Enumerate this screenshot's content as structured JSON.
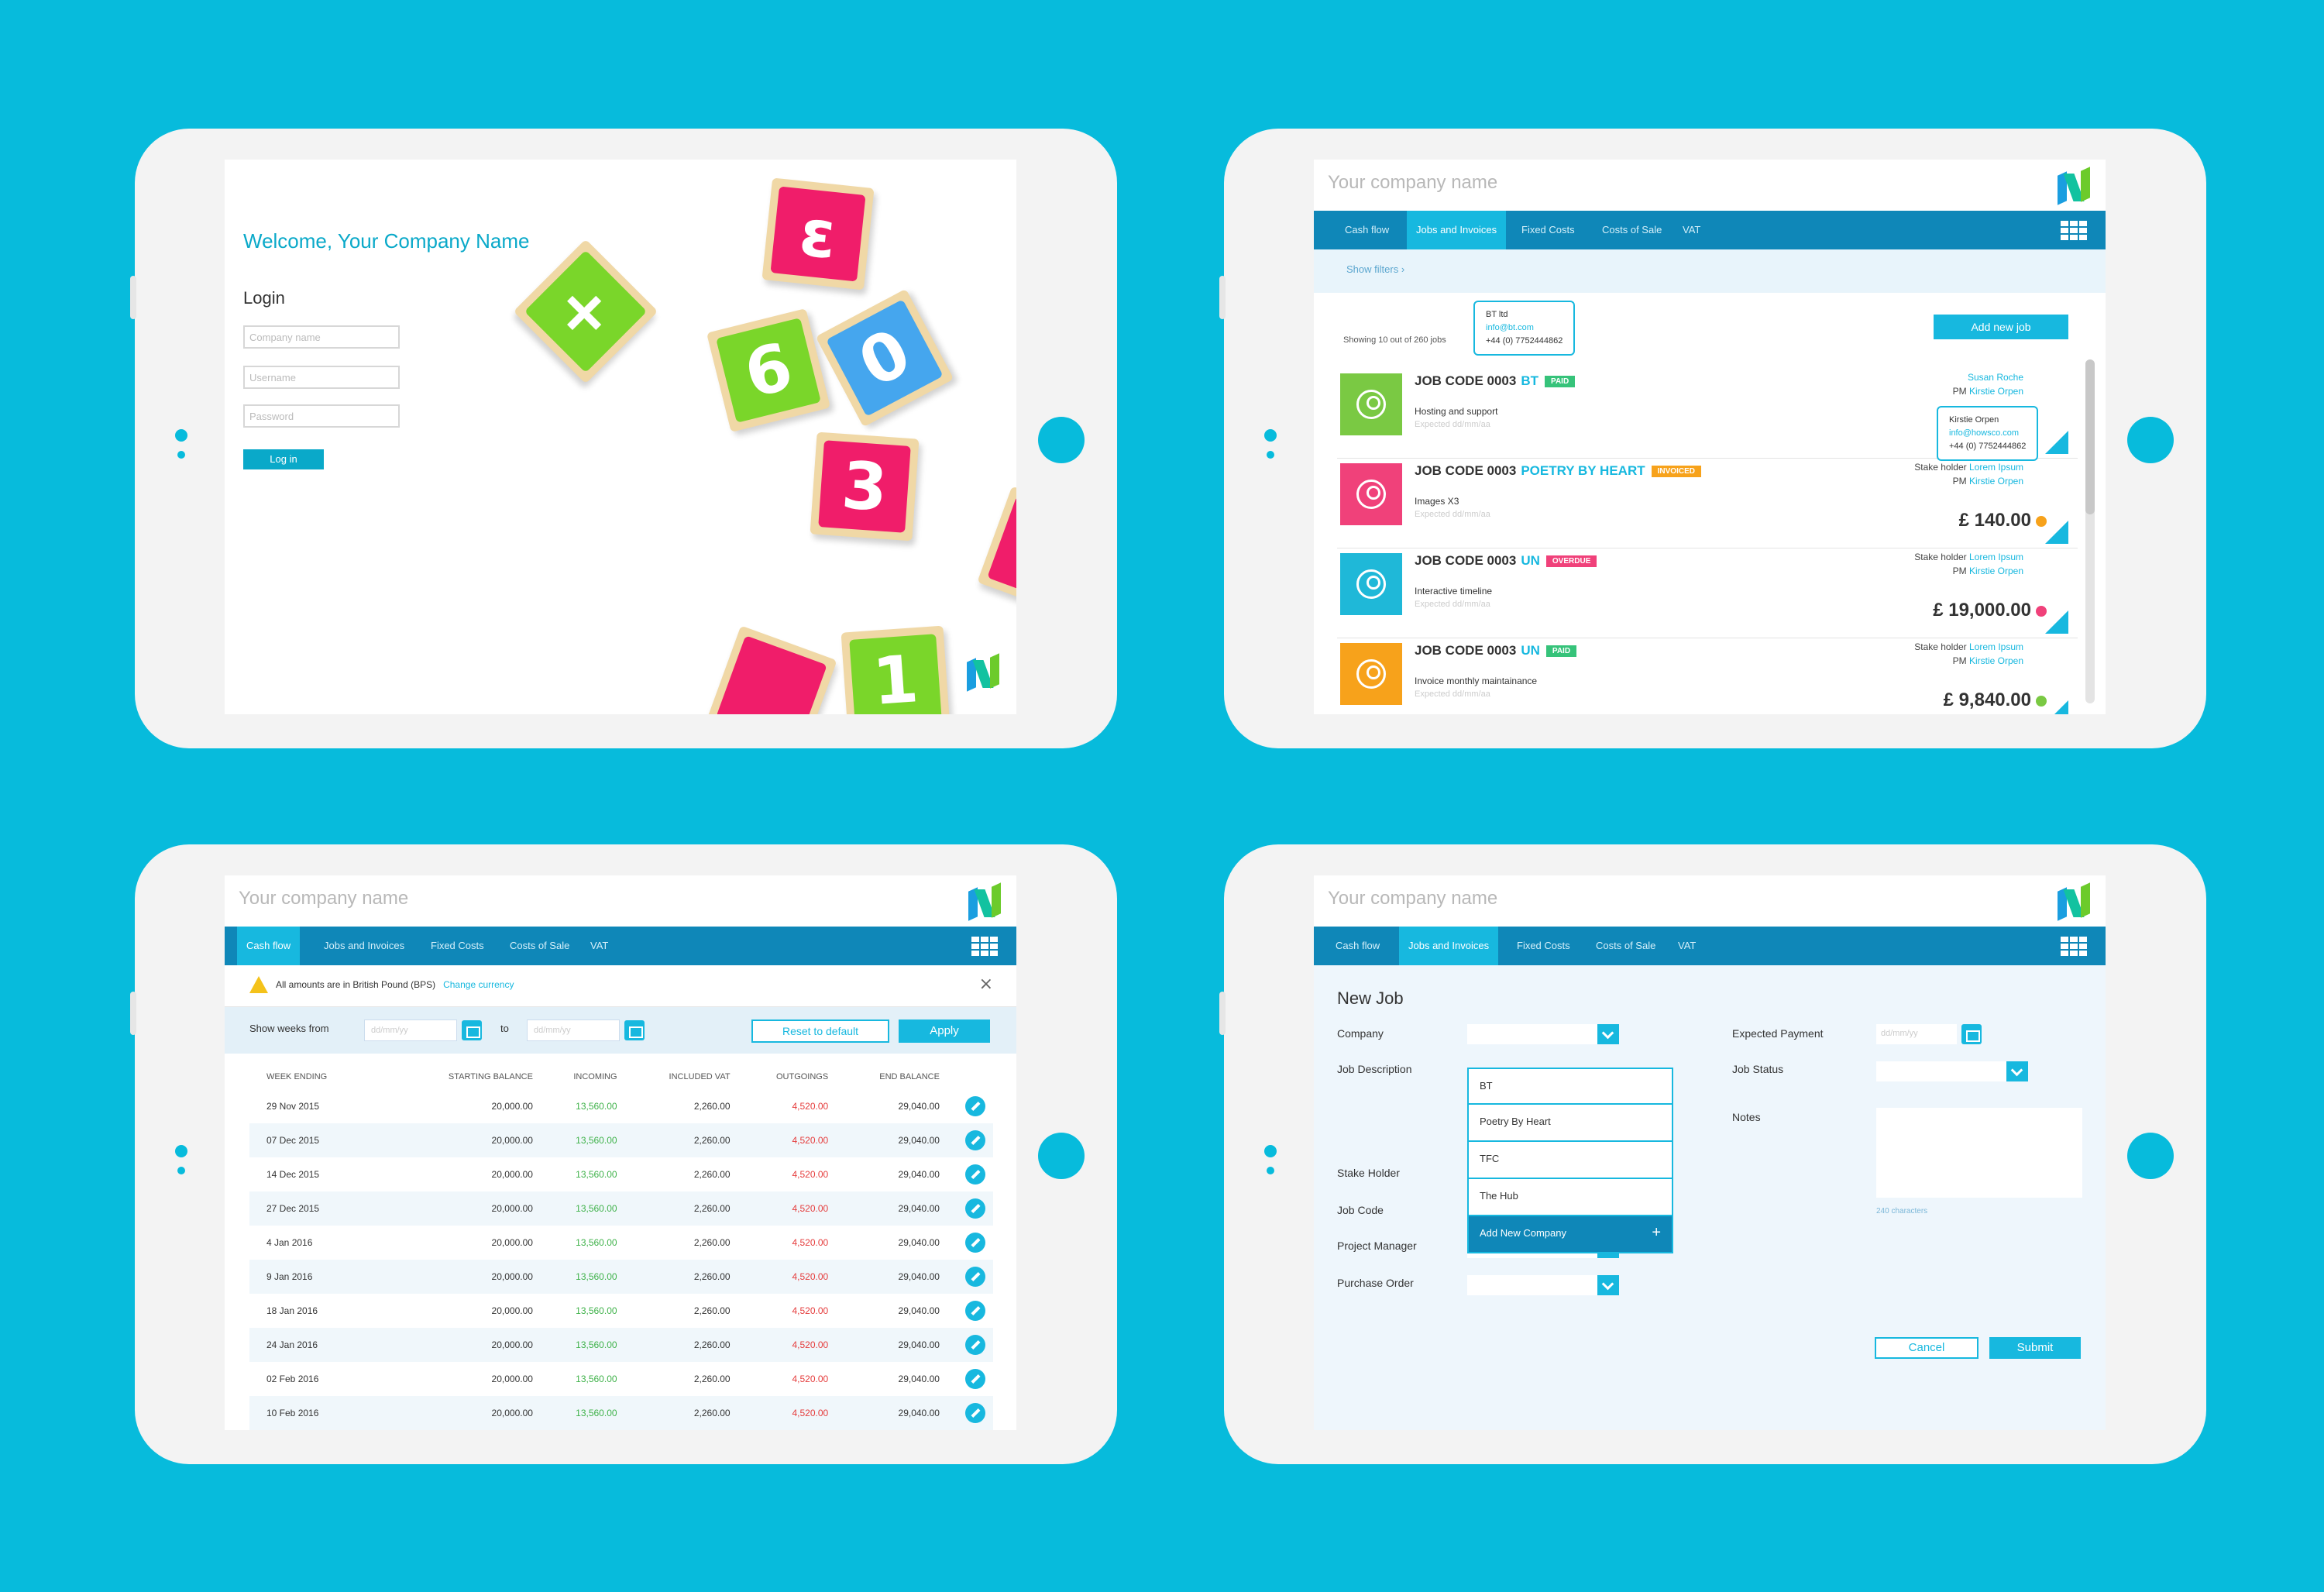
{
  "login": {
    "welcome": "Welcome, Your Company Name",
    "heading": "Login",
    "company_placeholder": "Company name",
    "username_placeholder": "Username",
    "password_placeholder": "Password",
    "button": "Log in",
    "blocks": [
      "+",
      "ε",
      "6",
      "0",
      "3",
      "1"
    ]
  },
  "app": {
    "company_name": "Your company name",
    "tabs": [
      "Cash flow",
      "Jobs and Invoices",
      "Fixed Costs",
      "Costs of Sale",
      "VAT"
    ]
  },
  "jobs": {
    "show_filters": "Show filters",
    "showing": "Showing 10 out of 260 jobs",
    "add_button": "Add new job",
    "tooltip_client": {
      "name": "BT ltd",
      "email": "info@bt.com",
      "phone": "+44 (0) 7752444862"
    },
    "tooltip_pm": {
      "name": "Kirstie Orpen",
      "email": "info@howsco.com",
      "phone": "+44 (0) 7752444862"
    },
    "rows": [
      {
        "code": "JOB CODE 0003",
        "client": "BT",
        "badge": "PAID",
        "badge_color": "#36c37a",
        "avatar_color": "#7ac943",
        "desc": "Hosting and support",
        "expected": "Expected dd/mm/aa",
        "stake_label": "",
        "stake": "Susan Roche",
        "pm_label": "PM",
        "pm": "Kirstie Orpen",
        "amount": "£",
        "dot": ""
      },
      {
        "code": "JOB CODE 0003",
        "client": "POETRY BY HEART",
        "badge": "INVOICED",
        "badge_color": "#f7a21b",
        "avatar_color": "#f0417a",
        "desc": "Images X3",
        "expected": "Expected dd/mm/aa",
        "stake_label": "Stake holder",
        "stake": "Lorem Ipsum",
        "pm_label": "PM",
        "pm": "Kirstie Orpen",
        "amount": "£ 140.00",
        "dot": "#f7a21b"
      },
      {
        "code": "JOB CODE 0003",
        "client": "UN",
        "badge": "OVERDUE",
        "badge_color": "#f0417a",
        "avatar_color": "#1fb8d8",
        "desc": "Interactive timeline",
        "expected": "Expected dd/mm/aa",
        "stake_label": "Stake holder",
        "stake": "Lorem Ipsum",
        "pm_label": "PM",
        "pm": "Kirstie Orpen",
        "amount": "£ 19,000.00",
        "dot": "#f0417a"
      },
      {
        "code": "JOB CODE 0003",
        "client": "UN",
        "badge": "PAID",
        "badge_color": "#36c37a",
        "avatar_color": "#f7a21b",
        "desc": "Invoice monthly maintainance",
        "expected": "Expected dd/mm/aa",
        "stake_label": "Stake holder",
        "stake": "Lorem Ipsum",
        "pm_label": "PM",
        "pm": "Kirstie Orpen",
        "amount": "£ 9,840.00",
        "dot": "#7ac943"
      }
    ]
  },
  "cashflow": {
    "alert": "All amounts are in British Pound (BPS)",
    "change_currency": "Change currency",
    "show_weeks_from": "Show weeks from",
    "to": "to",
    "date_placeholder": "dd/mm/yy",
    "reset": "Reset to default",
    "apply": "Apply",
    "columns": [
      "WEEK ENDING",
      "STARTING BALANCE",
      "INCOMING",
      "INCLUDED VAT",
      "OUTGOINGS",
      "END BALANCE"
    ],
    "rows": [
      [
        "29 Nov 2015",
        "20,000.00",
        "13,560.00",
        "2,260.00",
        "4,520.00",
        "29,040.00"
      ],
      [
        "07 Dec 2015",
        "20,000.00",
        "13,560.00",
        "2,260.00",
        "4,520.00",
        "29,040.00"
      ],
      [
        "14 Dec 2015",
        "20,000.00",
        "13,560.00",
        "2,260.00",
        "4,520.00",
        "29,040.00"
      ],
      [
        "27 Dec 2015",
        "20,000.00",
        "13,560.00",
        "2,260.00",
        "4,520.00",
        "29,040.00"
      ],
      [
        "4 Jan 2016",
        "20,000.00",
        "13,560.00",
        "2,260.00",
        "4,520.00",
        "29,040.00"
      ],
      [
        "9 Jan 2016",
        "20,000.00",
        "13,560.00",
        "2,260.00",
        "4,520.00",
        "29,040.00"
      ],
      [
        "18 Jan 2016",
        "20,000.00",
        "13,560.00",
        "2,260.00",
        "4,520.00",
        "29,040.00"
      ],
      [
        "24 Jan 2016",
        "20,000.00",
        "13,560.00",
        "2,260.00",
        "4,520.00",
        "29,040.00"
      ],
      [
        "02 Feb 2016",
        "20,000.00",
        "13,560.00",
        "2,260.00",
        "4,520.00",
        "29,040.00"
      ],
      [
        "10 Feb 2016",
        "20,000.00",
        "13,560.00",
        "2,260.00",
        "4,520.00",
        "29,040.00"
      ]
    ]
  },
  "newjob": {
    "title": "New Job",
    "labels": {
      "company": "Company",
      "job_description": "Job Description",
      "stake_holder": "Stake Holder",
      "job_code": "Job Code",
      "project_manager": "Project Manager",
      "purchase_order": "Purchase Order",
      "expected_payment": "Expected Payment",
      "job_status": "Job Status",
      "notes": "Notes"
    },
    "date_placeholder": "dd/mm/yy",
    "dropdown": [
      "BT",
      "Poetry By Heart",
      "TFC",
      "The Hub"
    ],
    "add_company": "Add New Company",
    "chars": "240 characters",
    "cancel": "Cancel",
    "submit": "Submit"
  },
  "colors": {
    "background": "#07bbdc",
    "accent": "#17b8df",
    "nav": "#0f87b8"
  }
}
